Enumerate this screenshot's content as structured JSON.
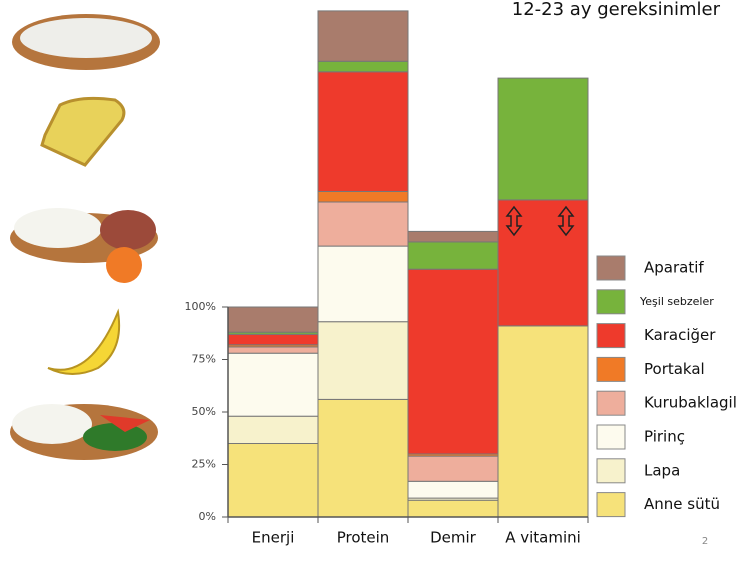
{
  "chart_data": {
    "type": "stacked_bar",
    "title": "12-23 ay gereksinimler",
    "categories": [
      "Enerji",
      "Protein",
      "Demir",
      "A vitamini"
    ],
    "series": [
      {
        "name": "Anne sütü",
        "color": "#f6e27a",
        "values": [
          35,
          56,
          8,
          91
        ]
      },
      {
        "name": "Lapa",
        "color": "#f7f2cc",
        "values": [
          13,
          37,
          1,
          0
        ]
      },
      {
        "name": "Pirinç",
        "color": "#fdfbee",
        "values": [
          30,
          36,
          8,
          0
        ]
      },
      {
        "name": "Kurubaklagil",
        "color": "#eeae9c",
        "values": [
          3,
          21,
          12,
          0
        ]
      },
      {
        "name": "Portakal",
        "color": "#f07a26",
        "values": [
          1,
          5,
          1,
          0
        ]
      },
      {
        "name": "Karaciğer",
        "color": "#ee3a2c",
        "values": [
          5,
          57,
          88,
          60
        ]
      },
      {
        "name": "Yeşil sebzeler",
        "color": "#77b33c",
        "values": [
          1,
          5,
          13,
          58
        ]
      },
      {
        "name": "Aparatif",
        "color": "#a97c6c",
        "values": [
          12,
          24,
          5,
          0
        ]
      }
    ],
    "ylim": [
      0,
      240
    ],
    "yticks": [
      {
        "value": 0,
        "label": "0%"
      },
      {
        "value": 25,
        "label": "25%"
      },
      {
        "value": 50,
        "label": "50%"
      },
      {
        "value": 75,
        "label": "75%"
      },
      {
        "value": 100,
        "label": "100%"
      }
    ],
    "page_number": "2"
  }
}
